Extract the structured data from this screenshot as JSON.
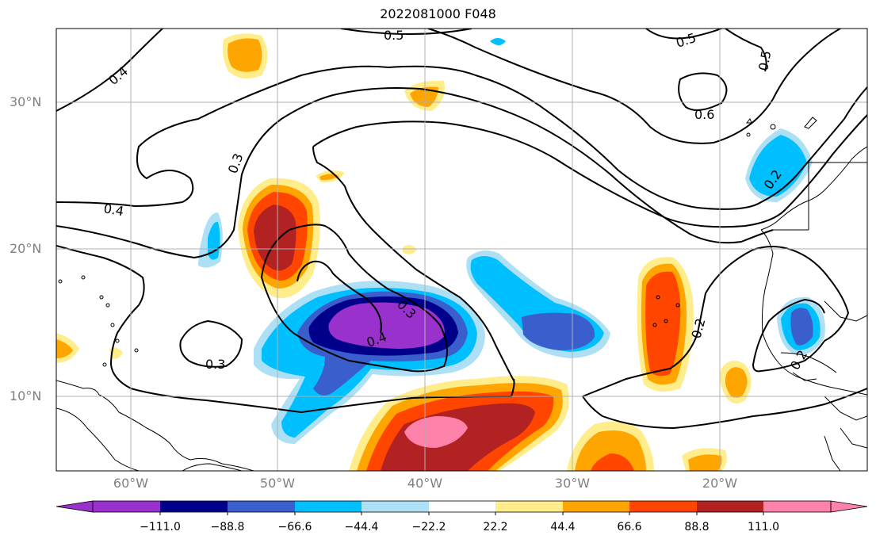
{
  "title": "2022081000 F048",
  "lat_labels": [
    "30°N",
    "20°N",
    "10°N"
  ],
  "lon_labels": [
    "60°W",
    "50°W",
    "40°W",
    "30°W",
    "20°W"
  ],
  "contour_labels": [
    "0.5",
    "0.5",
    "0.4",
    "0.6",
    "0.5",
    "0.3",
    "0.4",
    "0.2",
    "0.3",
    "0.4",
    "0.3",
    "0.2",
    "0.2"
  ],
  "colorbar": {
    "tick_labels": [
      "−111.0",
      "−88.8",
      "−66.6",
      "−44.4",
      "−22.2",
      "22.2",
      "44.4",
      "66.6",
      "88.8",
      "111.0"
    ],
    "colors": [
      "#9932cc",
      "#00008b",
      "#3a5fcd",
      "#00bfff",
      "#aee0f5",
      "#ffffff",
      "#ffec8b",
      "#ffa500",
      "#ff4500",
      "#b22222",
      "#ff82ab"
    ]
  }
}
